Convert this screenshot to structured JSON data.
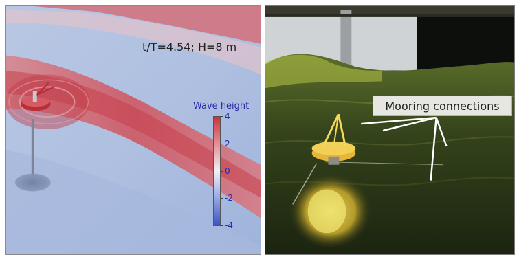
{
  "left_panel": {
    "sim_label": "t/T=4.54; H=8 m",
    "colorbar": {
      "title": "Wave height",
      "ticks": [
        "4",
        "2",
        "0",
        "-2",
        "-4"
      ],
      "high_color": "#c8353a",
      "mid_color": "#f1f1f3",
      "low_color": "#3a55c6"
    }
  },
  "right_panel": {
    "callout_label": "Mooring connections"
  }
}
